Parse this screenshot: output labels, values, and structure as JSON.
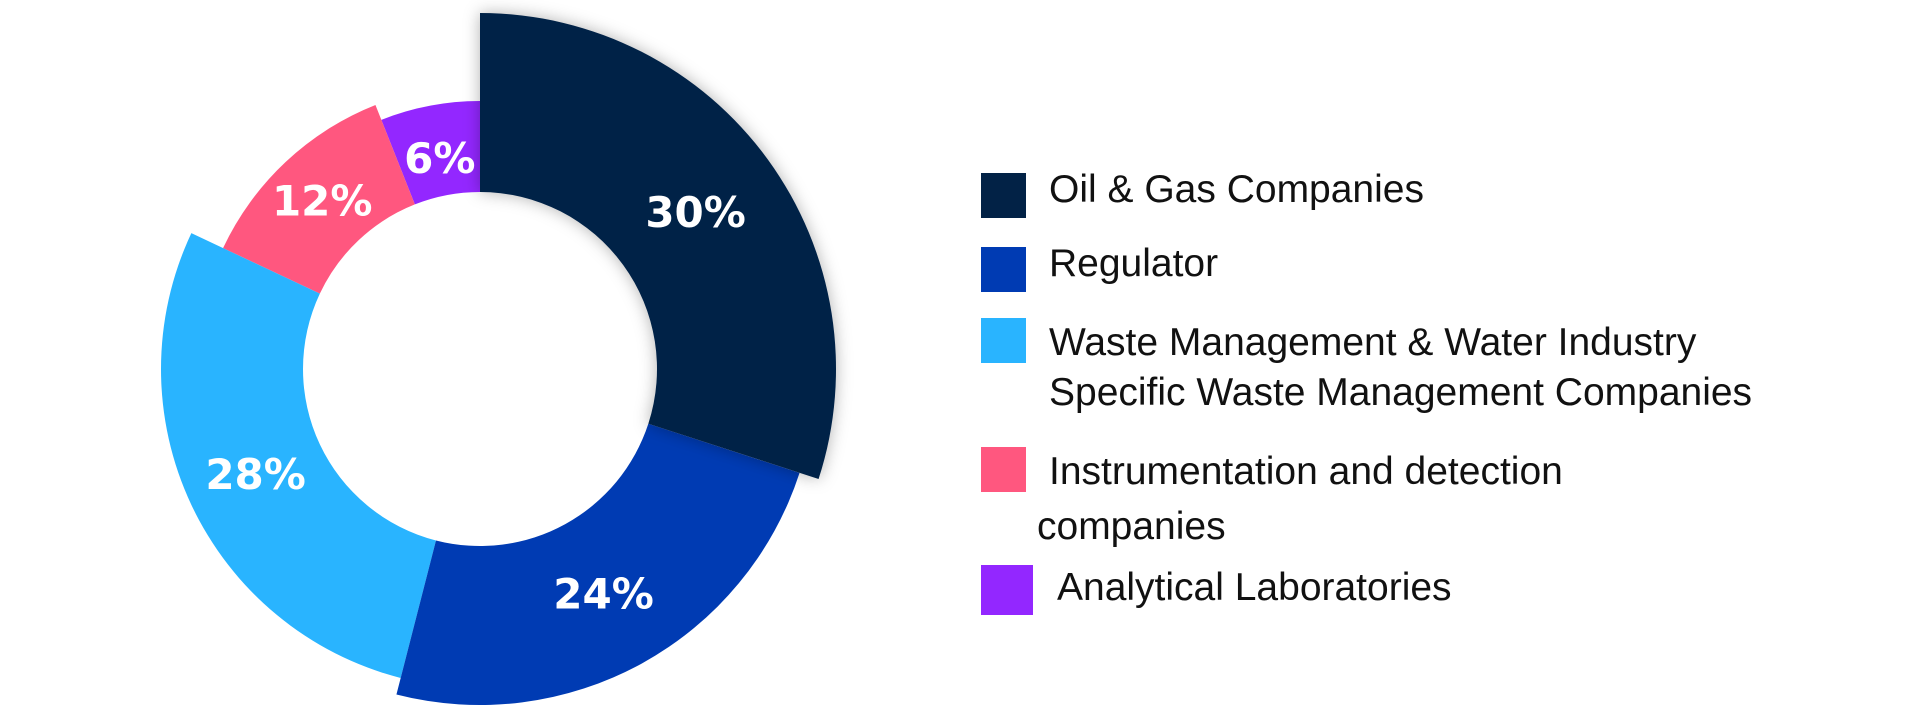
{
  "chart_data": {
    "type": "pie",
    "variant": "donut",
    "categories": [
      "Oil & Gas Companies",
      "Regulator",
      "Waste Management & Water Industry Specific Waste Management Companies",
      "Instrumentation and detection companies",
      "Analytical Laboratories"
    ],
    "values": [
      30,
      24,
      28,
      12,
      6
    ],
    "data_labels": [
      "30%",
      "24%",
      "28%",
      "12%",
      "6%"
    ],
    "colors": [
      "#022246",
      "#003BB3",
      "#29B4FF",
      "#FF577F",
      "#9327FF"
    ],
    "legend_position": "right",
    "legend": [
      {
        "line1": "Oil & Gas Companies",
        "line2": ""
      },
      {
        "line1": "Regulator",
        "line2": ""
      },
      {
        "line1": "Waste Management & Water Industry",
        "line2": "Specific Waste Management Companies"
      },
      {
        "line1": "Instrumentation and detection",
        "line2": "companies"
      },
      {
        "line1": "Analytical Laboratories",
        "line2": ""
      }
    ]
  }
}
